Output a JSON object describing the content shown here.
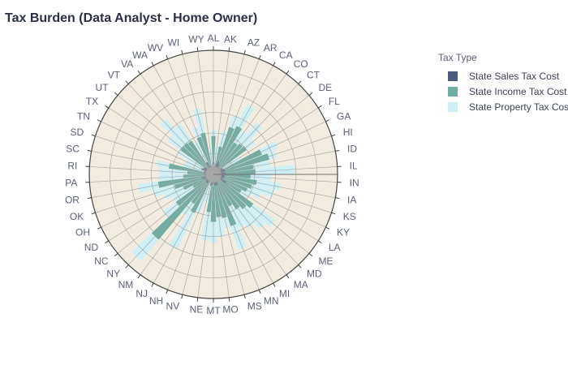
{
  "chart_data": {
    "type": "barpolar",
    "title": "Tax Burden (Data Analyst - Home Owner)",
    "legend_title": "Tax Type",
    "legend_position": "top-right",
    "angular_order": "clockwise from top",
    "radial_range": [
      0,
      30000
    ],
    "categories": [
      "AL",
      "AK",
      "AZ",
      "AR",
      "CA",
      "CO",
      "CT",
      "DE",
      "FL",
      "GA",
      "HI",
      "ID",
      "IL",
      "IN",
      "IA",
      "KS",
      "KY",
      "LA",
      "ME",
      "MD",
      "MA",
      "MI",
      "MN",
      "MS",
      "MO",
      "MT",
      "NE",
      "NV",
      "NH",
      "NJ",
      "NM",
      "NY",
      "NC",
      "ND",
      "OH",
      "OK",
      "OR",
      "PA",
      "RI",
      "SC",
      "SD",
      "TN",
      "TX",
      "UT",
      "VT",
      "VA",
      "WA",
      "WV",
      "WI",
      "WY"
    ],
    "series": [
      {
        "name": "State Sales Tax Cost",
        "color": "#4c5a7e",
        "values": [
          3000,
          2000,
          2700,
          3300,
          2800,
          2200,
          2000,
          1500,
          2600,
          2900,
          3000,
          2300,
          3000,
          2700,
          2800,
          2700,
          2400,
          3600,
          1500,
          2000,
          1800,
          2100,
          2700,
          2800,
          2600,
          1500,
          2400,
          2800,
          1500,
          2200,
          2600,
          2600,
          2300,
          2200,
          2500,
          3000,
          1500,
          2200,
          2000,
          2400,
          2300,
          3200,
          2800,
          2600,
          1500,
          2100,
          3300,
          2200,
          2100,
          2000
        ]
      },
      {
        "name": "State Income Tax Cost",
        "color": "#70aea4",
        "values": [
          6300,
          0,
          4200,
          8800,
          10200,
          7000,
          7800,
          8500,
          0,
          9800,
          11000,
          7500,
          7200,
          6300,
          7800,
          7000,
          6500,
          4200,
          10500,
          9000,
          8300,
          6500,
          10500,
          8000,
          7800,
          10000,
          6800,
          0,
          0,
          8200,
          5900,
          18000,
          9000,
          3500,
          5400,
          6800,
          12000,
          5100,
          4300,
          8500,
          0,
          0,
          0,
          7300,
          8400,
          7600,
          0,
          7400,
          8200,
          0
        ]
      },
      {
        "name": "State Property Tax Cost",
        "color": "#cdeff5",
        "values": [
          1500,
          5000,
          3800,
          3000,
          5800,
          3500,
          6500,
          2500,
          5200,
          4200,
          2000,
          4200,
          9500,
          5000,
          5800,
          5500,
          3500,
          2000,
          6600,
          6200,
          5400,
          5800,
          6000,
          2600,
          4800,
          5000,
          6800,
          4000,
          8200,
          9500,
          3400,
          6700,
          3800,
          5600,
          5000,
          5200,
          4800,
          6000,
          6800,
          3000,
          5200,
          4000,
          7000,
          3800,
          7600,
          4800,
          5500,
          2500,
          6000,
          3600
        ]
      }
    ]
  }
}
